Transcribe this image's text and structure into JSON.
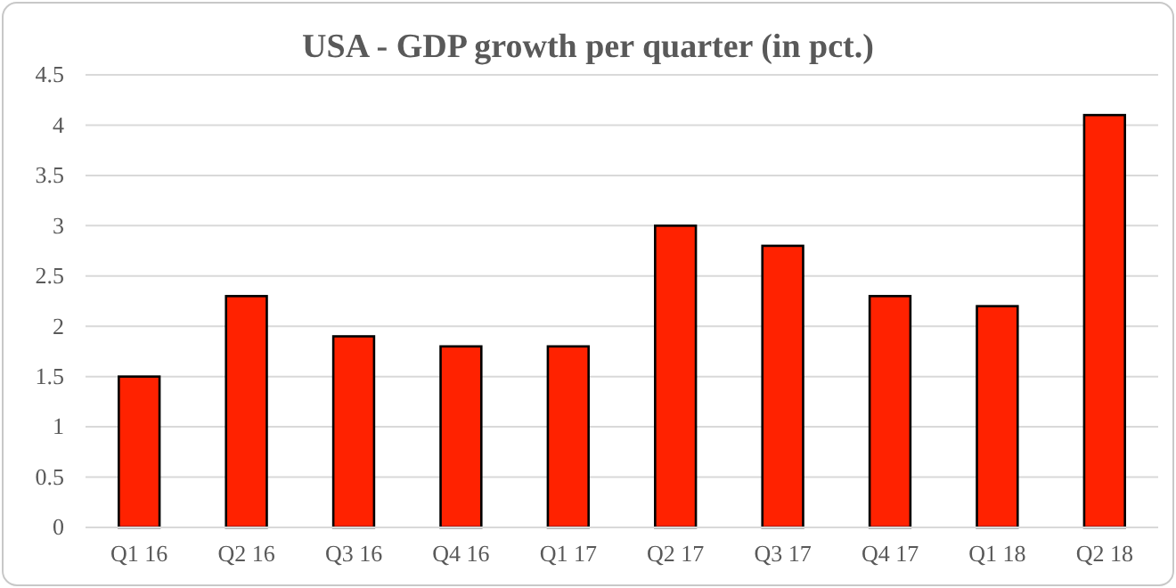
{
  "chart_data": {
    "type": "bar",
    "title": "USA - GDP growth per quarter (in pct.)",
    "categories": [
      "Q1 16",
      "Q2 16",
      "Q3 16",
      "Q4 16",
      "Q1 17",
      "Q2 17",
      "Q3 17",
      "Q4 17",
      "Q1 18",
      "Q2 18"
    ],
    "values": [
      1.5,
      2.3,
      1.9,
      1.8,
      1.8,
      3.0,
      2.8,
      2.3,
      2.2,
      4.1
    ],
    "color": "#ff2200",
    "ylim": [
      0,
      4.5
    ],
    "yticks": [
      0,
      0.5,
      1,
      1.5,
      2,
      2.5,
      3,
      3.5,
      4,
      4.5
    ],
    "grid": "y"
  }
}
